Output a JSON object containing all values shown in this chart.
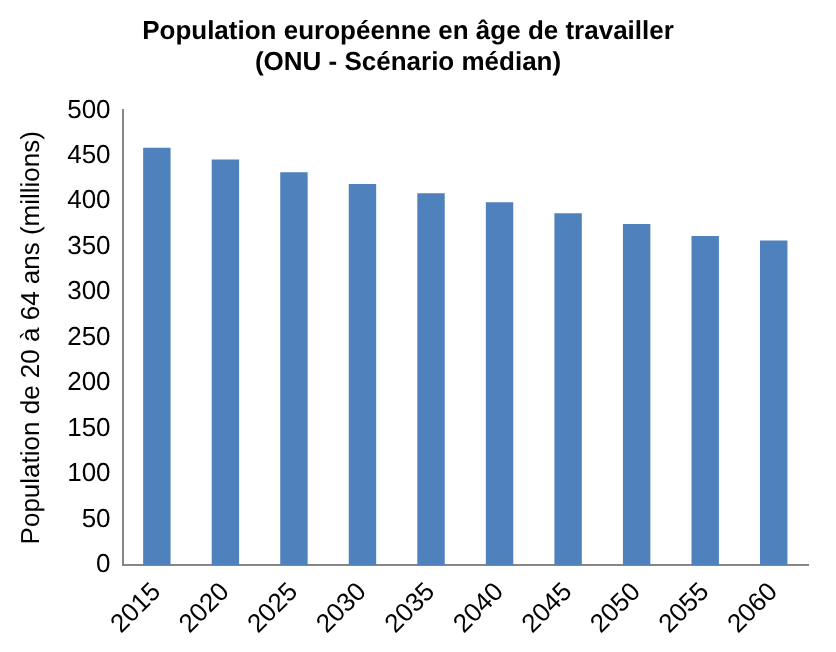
{
  "chart_data": {
    "type": "bar",
    "title": "Population européenne en âge de travailler\n(ONU - Scénario médian)",
    "ylabel": "Population de 20 à 64 ans (millions)",
    "categories": [
      "2015",
      "2020",
      "2025",
      "2030",
      "2035",
      "2040",
      "2045",
      "2050",
      "2055",
      "2060"
    ],
    "values": [
      459,
      446,
      432,
      419,
      409,
      399,
      387,
      375,
      362,
      357
    ],
    "color": "#4f81bd",
    "ylim": [
      0,
      500
    ],
    "yticks": [
      0,
      50,
      100,
      150,
      200,
      250,
      300,
      350,
      400,
      450,
      500
    ],
    "grid": false,
    "legend": false
  }
}
